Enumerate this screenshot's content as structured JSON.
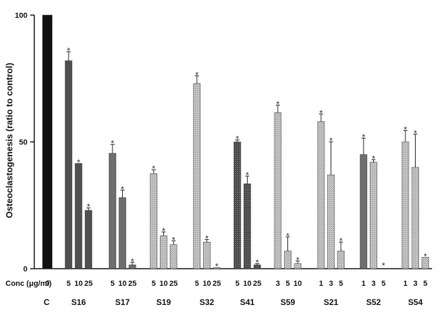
{
  "chart_data": {
    "type": "bar",
    "title": "",
    "ylabel": "Osteoclastogenesis (ratio to control)",
    "ylim": [
      0,
      100
    ],
    "yticks": [
      "0",
      "50",
      "100"
    ],
    "conc_label": "Conc (μg/ml)",
    "significance_marker": "*",
    "colors": {
      "control": "#111111",
      "dark": "#505050",
      "medium": "#6e6e6e",
      "hatch_light": "#bdbdbd",
      "hatch_dark": "#3a3a3a"
    },
    "groups": [
      {
        "name": "C",
        "bars": [
          {
            "conc": "0",
            "value": 100,
            "error": 0,
            "sig": false,
            "style": "control"
          }
        ]
      },
      {
        "name": "S16",
        "bars": [
          {
            "conc": "5",
            "value": 82,
            "error": 3.5,
            "sig": true,
            "style": "dark"
          },
          {
            "conc": "10",
            "value": 41.5,
            "error": 0,
            "sig": true,
            "style": "dark"
          },
          {
            "conc": "25",
            "value": 23,
            "error": 1,
            "sig": true,
            "style": "dark"
          }
        ]
      },
      {
        "name": "S17",
        "bars": [
          {
            "conc": "5",
            "value": 45.5,
            "error": 3.5,
            "sig": true,
            "style": "medium"
          },
          {
            "conc": "10",
            "value": 28,
            "error": 3,
            "sig": true,
            "style": "medium"
          },
          {
            "conc": "25",
            "value": 1.5,
            "error": 1,
            "sig": true,
            "style": "medium"
          }
        ]
      },
      {
        "name": "S19",
        "bars": [
          {
            "conc": "5",
            "value": 37.5,
            "error": 1.5,
            "sig": true,
            "style": "hatch_light"
          },
          {
            "conc": "10",
            "value": 13,
            "error": 1.5,
            "sig": true,
            "style": "hatch_light"
          },
          {
            "conc": "25",
            "value": 9.5,
            "error": 1.5,
            "sig": true,
            "style": "hatch_light"
          }
        ]
      },
      {
        "name": "S32",
        "bars": [
          {
            "conc": "5",
            "value": 73,
            "error": 3,
            "sig": true,
            "style": "hatch_light"
          },
          {
            "conc": "10",
            "value": 10.5,
            "error": 1,
            "sig": true,
            "style": "hatch_light"
          },
          {
            "conc": "25",
            "value": 0.5,
            "error": 0,
            "sig": true,
            "style": "hatch_light"
          }
        ]
      },
      {
        "name": "S41",
        "bars": [
          {
            "conc": "5",
            "value": 50,
            "error": 0.8,
            "sig": true,
            "style": "hatch_dark"
          },
          {
            "conc": "10",
            "value": 33.5,
            "error": 3,
            "sig": true,
            "style": "hatch_dark"
          },
          {
            "conc": "25",
            "value": 1.5,
            "error": 0.5,
            "sig": true,
            "style": "hatch_dark"
          }
        ]
      },
      {
        "name": "S59",
        "bars": [
          {
            "conc": "3",
            "value": 61.5,
            "error": 3,
            "sig": true,
            "style": "hatch_light"
          },
          {
            "conc": "5",
            "value": 7,
            "error": 5.5,
            "sig": true,
            "style": "hatch_light"
          },
          {
            "conc": "10",
            "value": 2,
            "error": 1,
            "sig": true,
            "style": "hatch_light"
          }
        ]
      },
      {
        "name": "S21",
        "bars": [
          {
            "conc": "1",
            "value": 58,
            "error": 3,
            "sig": true,
            "style": "hatch_light"
          },
          {
            "conc": "3",
            "value": 37,
            "error": 13,
            "sig": true,
            "style": "hatch_light"
          },
          {
            "conc": "5",
            "value": 7,
            "error": 3.5,
            "sig": true,
            "style": "hatch_light"
          }
        ]
      },
      {
        "name": "S52",
        "bars": [
          {
            "conc": "1",
            "value": 45,
            "error": 6.5,
            "sig": true,
            "style": "medium"
          },
          {
            "conc": "3",
            "value": 42,
            "error": 1,
            "sig": true,
            "style": "hatch_light"
          },
          {
            "conc": "5",
            "value": 0,
            "error": 0,
            "sig": true,
            "style": "hatch_light"
          }
        ]
      },
      {
        "name": "S54",
        "bars": [
          {
            "conc": "1",
            "value": 50,
            "error": 4.5,
            "sig": true,
            "style": "hatch_light"
          },
          {
            "conc": "3",
            "value": 40,
            "error": 13,
            "sig": true,
            "style": "hatch_light"
          },
          {
            "conc": "5",
            "value": 4.5,
            "error": 0,
            "sig": true,
            "style": "hatch_light"
          }
        ]
      }
    ]
  }
}
